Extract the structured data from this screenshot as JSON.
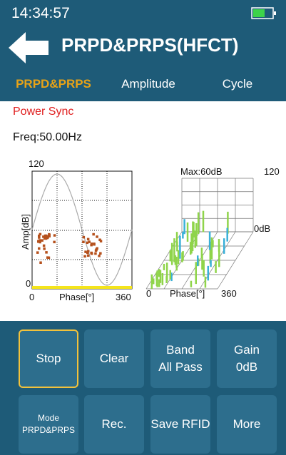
{
  "status_bar": {
    "time": "14:34:57"
  },
  "header": {
    "title": "PRPD&PRPS(HFCT)"
  },
  "tabs": [
    {
      "label": "PRPD&PRPS",
      "active": true
    },
    {
      "label": "Amplitude",
      "active": false
    },
    {
      "label": "Cycle",
      "active": false
    }
  ],
  "info": {
    "sync": "Power Sync",
    "freq": "Freq:50.00Hz"
  },
  "prpd": {
    "y_label": "Amp[dB]",
    "y_max": "120",
    "y_min": "0",
    "x_min": "0",
    "x_max": "360",
    "x_label": "Phase[°]"
  },
  "prps": {
    "max": "Max:60dB",
    "z_max": "120",
    "z_min": "0dB",
    "x_min": "0",
    "x_label": "Phase[°]",
    "x_max": "360"
  },
  "buttons": [
    {
      "label": "Stop",
      "selected": true
    },
    {
      "label": "Clear",
      "selected": false
    },
    {
      "label": "Band",
      "sub": "All Pass",
      "selected": false
    },
    {
      "label": "Gain",
      "sub": "0dB",
      "selected": false
    },
    {
      "label": "Mode",
      "sub": "PRPD&PRPS",
      "selected": false
    },
    {
      "label": "Rec.",
      "selected": false
    },
    {
      "label": "Save RFID",
      "selected": false
    },
    {
      "label": "More",
      "selected": false
    }
  ]
}
